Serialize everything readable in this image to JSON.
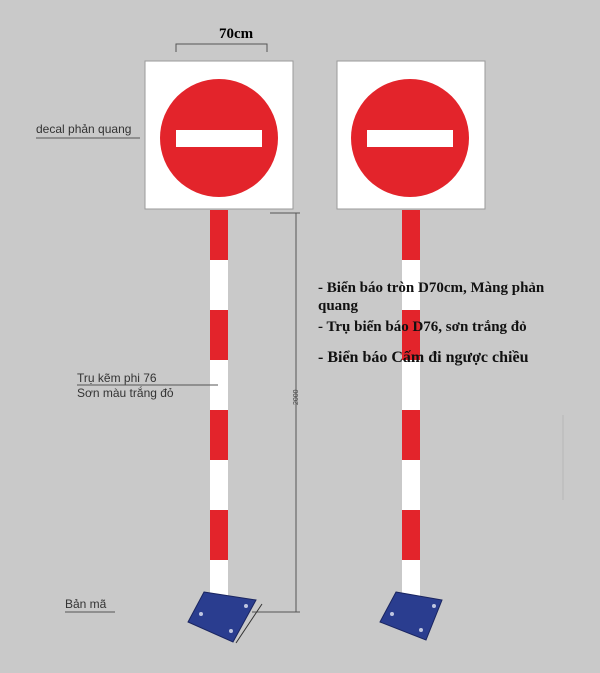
{
  "dimension_top": "70cm",
  "dimension_height": "2000",
  "labels": {
    "decal": "decal phản quang",
    "post_line1": "Trụ kẽm phi 76",
    "post_line2": "Sơn màu trắng đỏ",
    "base": "Bản mã"
  },
  "notes": [
    "- Biển báo tròn D70cm, Màng phản",
    "quang",
    "- Trụ biển báo D76, sơn trắng đỏ",
    "- Biển báo Cấm đi ngược chiều"
  ],
  "colors": {
    "background": "#c9c9c9",
    "sign_red": "#e3242b",
    "white": "#ffffff",
    "base_plate": "#2a3d8f"
  }
}
